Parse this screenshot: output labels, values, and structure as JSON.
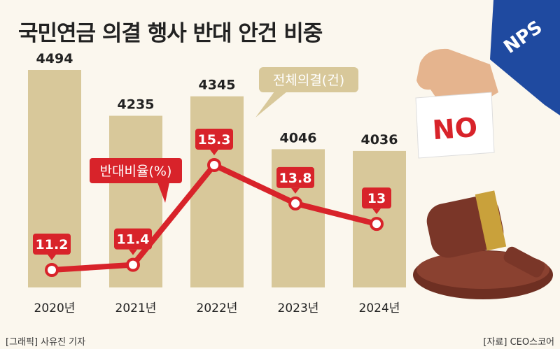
{
  "title": "국민연금 의결 행사 반대 안건 비중",
  "footer": {
    "credit": "[그래픽] 사유진 기자",
    "source": "[자료] CEO스코어"
  },
  "chart_data": {
    "type": "bar",
    "categories": [
      "2020년",
      "2021년",
      "2022년",
      "2023년",
      "2024년"
    ],
    "series": [
      {
        "name": "전체의결(건)",
        "type": "bar",
        "values": [
          4494,
          4235,
          4345,
          4046,
          4036
        ],
        "color": "#d8c89a"
      },
      {
        "name": "반대비율(%)",
        "type": "line",
        "values": [
          11.2,
          11.4,
          15.3,
          13.8,
          13
        ],
        "labels": [
          "11.2",
          "11.4",
          "15.3",
          "13.8",
          "13"
        ],
        "color": "#d8232a"
      }
    ]
  },
  "illustration": {
    "sleeve_text": "NPS",
    "card_text": "NO",
    "colors": {
      "sleeve": "#1f4aa0",
      "skin": "#e5b48e",
      "card": "#ffffff",
      "card_text": "#d8232a",
      "wood": "#7a3628",
      "brass": "#c9a13b"
    }
  }
}
